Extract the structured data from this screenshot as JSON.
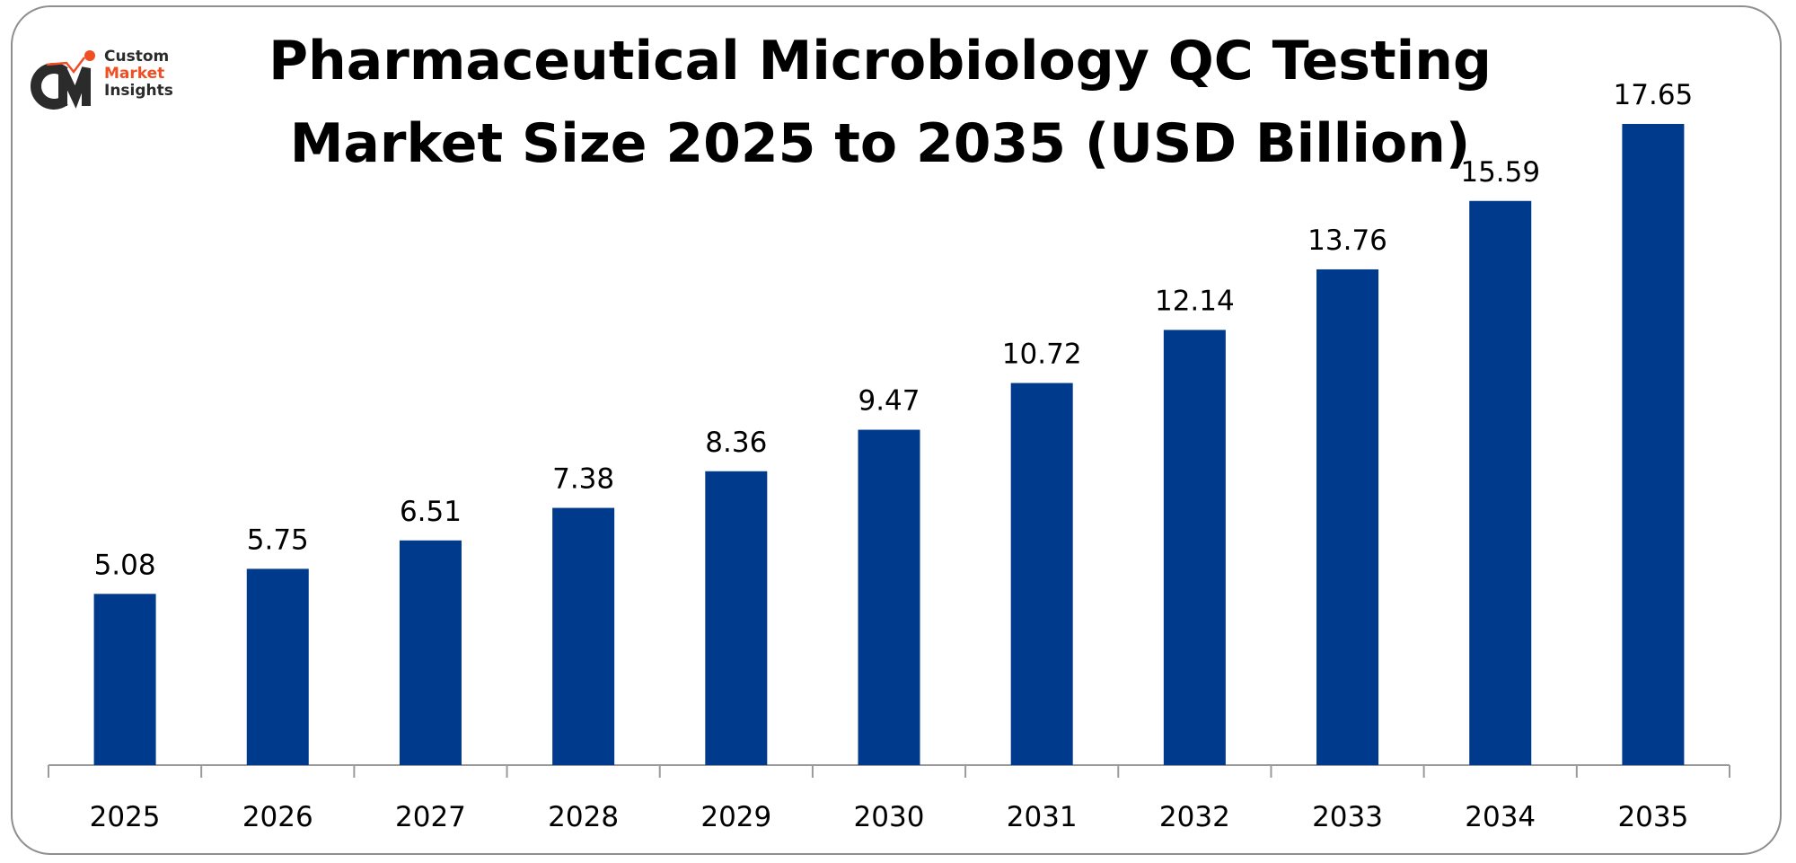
{
  "logo": {
    "line1": "Custom",
    "line2": "Market",
    "line3": "Insights",
    "mark": "CMI",
    "colors": {
      "dark": "#2b2b2b",
      "accent": "#f04e23"
    }
  },
  "chart_data": {
    "type": "bar",
    "title_line1": "Pharmaceutical Microbiology QC Testing",
    "title_line2": "Market Size 2025 to 2035 (USD Billion)",
    "categories": [
      "2025",
      "2026",
      "2027",
      "2028",
      "2029",
      "2030",
      "2031",
      "2032",
      "2033",
      "2034",
      "2035"
    ],
    "values": [
      5.08,
      5.75,
      6.51,
      7.38,
      8.36,
      9.47,
      10.72,
      12.14,
      13.76,
      15.59,
      17.65
    ],
    "value_labels": [
      "5.08",
      "5.75",
      "6.51",
      "7.38",
      "8.36",
      "9.47",
      "10.72",
      "12.14",
      "13.76",
      "15.59",
      "17.65"
    ],
    "xlabel": "",
    "ylabel": "",
    "ylim": [
      0.5,
      18
    ],
    "grid": false,
    "legend": "none",
    "bar_color": "#003a8c"
  }
}
